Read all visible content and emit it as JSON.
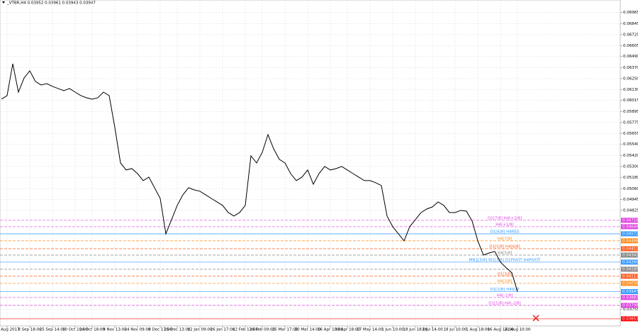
{
  "chart_data": {
    "type": "line",
    "title": "_VTBR,H4 0.03952 0.03961 0.03943 0.03947",
    "color": "#000000",
    "grid": true,
    "categories": [
      null,
      "25 Aug 2017",
      null,
      null,
      null,
      "8 Sep 18:00",
      null,
      null,
      null,
      "25 Sep 14:00",
      null,
      null,
      null,
      "10 Oct 10:00",
      null,
      null,
      "24 Oct 18:00",
      null,
      null,
      null,
      "9 Nov 13:00",
      null,
      null,
      null,
      "24 Nov 09:00",
      null,
      null,
      null,
      "8 Dec 17:00",
      null,
      null,
      "25 Dec 13:00",
      null,
      null,
      null,
      "12 Jan 09:00",
      null,
      null,
      null,
      "26 Jan 17:00",
      null,
      null,
      null,
      "12 Feb 13:00",
      null,
      null,
      "26 Feb 09:00",
      null,
      null,
      null,
      "15 Mar 17:00",
      null,
      null,
      null,
      "30 Mar 14:00",
      null,
      null,
      null,
      "16 Apr 10:00",
      null,
      null,
      "30 Apr 18:00",
      null,
      null,
      null,
      "17 May 14:00",
      null,
      null,
      null,
      "1 Jun 10:00",
      null,
      null,
      null,
      "18 Jun 18:00",
      null,
      null,
      "3 Jul 14:00",
      null,
      null,
      null,
      "18 Jul 10:00",
      null,
      null,
      null,
      "1 Aug 18:00",
      null,
      null,
      null,
      "16 Aug 14:00",
      null,
      null,
      "31 Aug 10:00"
    ],
    "values": [
      0.06028,
      0.06066,
      0.06411,
      0.06104,
      0.06257,
      0.06334,
      0.06219,
      0.06181,
      0.06196,
      0.06166,
      0.06143,
      0.0612,
      0.06143,
      0.06104,
      0.06066,
      0.06043,
      0.06028,
      0.06043,
      0.06104,
      0.06066,
      0.05721,
      0.05338,
      0.05262,
      0.05277,
      0.05223,
      0.05147,
      0.05185,
      0.0507,
      0.04955,
      0.04572,
      0.04725,
      0.04879,
      0.04994,
      0.0507,
      0.05047,
      0.05032,
      0.04994,
      0.04955,
      0.04917,
      0.04879,
      0.04802,
      0.04764,
      0.04802,
      0.04879,
      0.05415,
      0.05338,
      0.05453,
      0.05645,
      0.05491,
      0.05377,
      0.05338,
      0.05223,
      0.05147,
      0.05185,
      0.05262,
      0.05108,
      0.05223,
      0.053,
      0.05262,
      0.05277,
      0.053,
      0.05262,
      0.05223,
      0.05185,
      0.05147,
      0.05147,
      0.05124,
      0.05093,
      0.04764,
      0.04649,
      0.04572,
      0.04496,
      0.04649,
      0.04725,
      0.04802,
      0.0484,
      0.04863,
      0.04917,
      0.04879,
      0.04802,
      0.04802,
      0.04825,
      0.04817,
      0.0471,
      0.04496,
      0.04342,
      0.04365,
      0.04381,
      0.04266,
      0.04205,
      0.04151,
      0.03947
    ],
    "ylim": [
      0.03576,
      0.071
    ],
    "yticks": [
      {
        "value": 0.06965,
        "label": "0.06965"
      },
      {
        "value": 0.06845,
        "label": "0.06845"
      },
      {
        "value": 0.06725,
        "label": "0.06725"
      },
      {
        "value": 0.06605,
        "label": "0.06605"
      },
      {
        "value": 0.0649,
        "label": "0.06490"
      },
      {
        "value": 0.0637,
        "label": "0.06370"
      },
      {
        "value": 0.0625,
        "label": "0.06250"
      },
      {
        "value": 0.0613,
        "label": "0.06130"
      },
      {
        "value": 0.06015,
        "label": "0.06015"
      },
      {
        "value": 0.05895,
        "label": "0.05895"
      },
      {
        "value": 0.05775,
        "label": "0.05775"
      },
      {
        "value": 0.05655,
        "label": "0.05655"
      },
      {
        "value": 0.0554,
        "label": "0.05540"
      },
      {
        "value": 0.0542,
        "label": "0.05420"
      },
      {
        "value": 0.053,
        "label": "0.05300"
      },
      {
        "value": 0.0518,
        "label": "0.05180"
      },
      {
        "value": 0.0506,
        "label": "0.05060"
      },
      {
        "value": 0.04945,
        "label": "0.04945"
      },
      {
        "value": 0.04825,
        "label": "0.04825"
      },
      {
        "value": 0.03755,
        "label": "0.03755"
      }
    ],
    "levels": [
      {
        "name": "D1[7/8] H4[+2/8]",
        "value": 0.04718,
        "label": "0.04718",
        "color": "#e040e0",
        "dash": true
      },
      {
        "name": "H4[+1/8]",
        "value": 0.04649,
        "label": "0.04649",
        "color": "#e040e0",
        "dash": true
      },
      {
        "name": "D1[6/8] H4RES",
        "value": 0.04572,
        "label": "0.04572",
        "color": "#3399ff",
        "dash": false
      },
      {
        "name": "H4[7/8]",
        "value": 0.04496,
        "label": "0.04496",
        "color": "#ff8c1a",
        "dash": true
      },
      {
        "name": "D1[5/8] H4[6/8]",
        "value": 0.04411,
        "label": "0.04411",
        "color": "#ff5a1a",
        "dash": true
      },
      {
        "name": "H4[5/8]",
        "value": 0.04342,
        "label": "0.04342",
        "color": "#888888",
        "dash": true
      },
      {
        "name": "MN1[3/8] W1[3/8] D1PIVOT H4PIVOT",
        "value": 0.04266,
        "label": "0.04266",
        "color": "#3399ff",
        "dash": false
      },
      {
        "value": 0.04189,
        "label": "0.04189",
        "color": "#888888",
        "dash": true
      },
      {
        "name": "D1[3/8]",
        "value": 0.04113,
        "label": "0.04113",
        "color": "#ff5a1a",
        "dash": true
      },
      {
        "name": "H4[2/8]",
        "value": 0.04036,
        "label": "0.04036",
        "color": "#ff8c1a",
        "dash": true
      },
      {
        "name": "D1[2/8] H4SUP",
        "value": 0.03947,
        "label": "0.03947",
        "color": "#3399ff",
        "dash": false
      },
      {
        "name": "H4[-1/8]",
        "value": 0.03883,
        "label": "0.03883",
        "color": "#e040e0",
        "dash": true
      },
      {
        "name": "D1[1/8] H4[-2/8]",
        "value": 0.03798,
        "label": "0.03798",
        "color": "#e040e0",
        "dash": true
      },
      {
        "value": 0.03653,
        "label": "0.03653",
        "color": "#ff0000",
        "dash": false
      }
    ]
  }
}
